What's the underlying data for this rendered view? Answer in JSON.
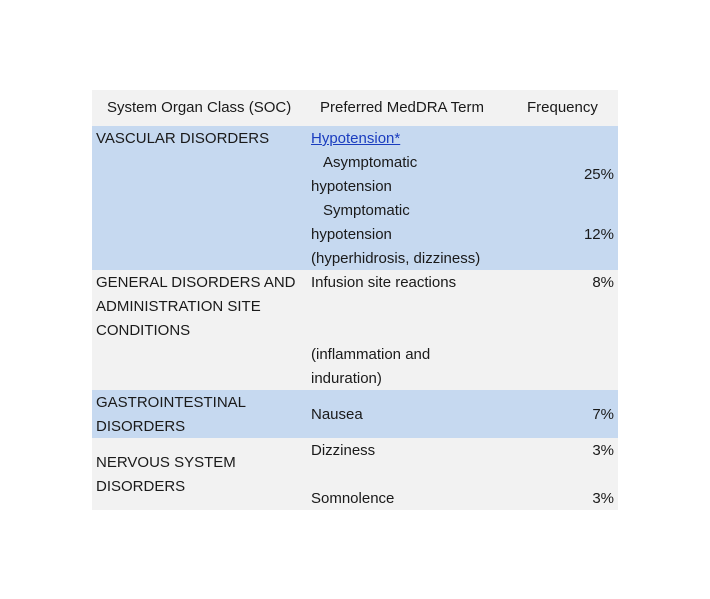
{
  "header": {
    "soc": "System Organ Class (SOC)",
    "term": "Preferred MedDRA Term",
    "frequency": "Frequency"
  },
  "rows": [
    {
      "soc_lines": [
        "VASCULAR DISORDERS"
      ],
      "terms": [
        "Hypotension*",
        "Asymptomatic",
        "hypotension",
        "Symptomatic",
        "hypotension",
        "(hyperhidrosis, dizziness)"
      ],
      "frequencies": [
        "25%",
        "12%"
      ]
    },
    {
      "soc_lines": [
        "GENERAL DISORDERS AND",
        "ADMINISTRATION SITE",
        "CONDITIONS"
      ],
      "terms": [
        "Infusion site reactions",
        "(inflammation and",
        "induration)"
      ],
      "frequencies": [
        "8%"
      ]
    },
    {
      "soc_lines": [
        "GASTROINTESTINAL",
        "DISORDERS"
      ],
      "terms": [
        "Nausea"
      ],
      "frequencies": [
        "7%"
      ]
    },
    {
      "soc_lines": [
        "NERVOUS SYSTEM",
        "DISORDERS"
      ],
      "terms": [
        "Dizziness",
        "Somnolence"
      ],
      "frequencies": [
        "3%",
        "3%"
      ]
    }
  ]
}
